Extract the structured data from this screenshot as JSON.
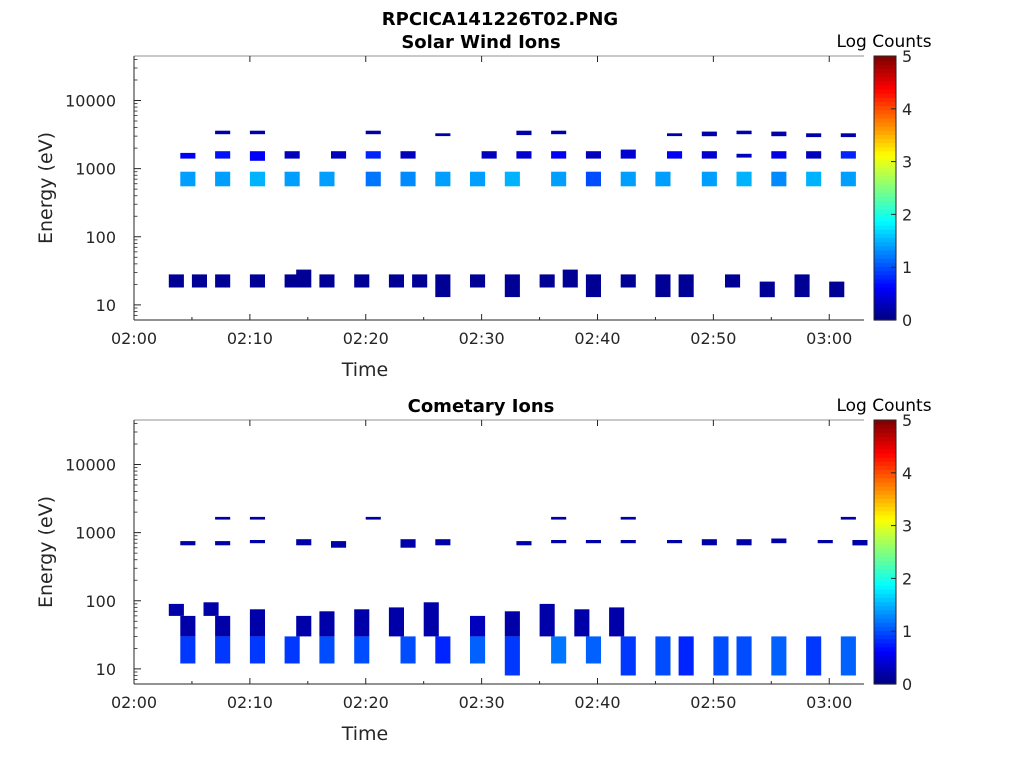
{
  "figure_title": "RPCICA141226T02.PNG",
  "chart_data": [
    {
      "type": "heatmap",
      "title": "Solar Wind Ions",
      "xlabel": "Time",
      "ylabel": "Energy (eV)",
      "x_ticks": [
        "02:00",
        "02:10",
        "02:20",
        "02:30",
        "02:40",
        "02:50",
        "03:00"
      ],
      "xlim": [
        "02:00",
        "03:03"
      ],
      "y_ticks": [
        "10",
        "100",
        "1000",
        "10000"
      ],
      "ylim": [
        6,
        45000
      ],
      "y_scale": "log",
      "colorbar": {
        "label": "Log Counts",
        "ticks": [
          "0",
          "1",
          "2",
          "3",
          "4",
          "5"
        ],
        "range": [
          0,
          5
        ],
        "colormap": "jet"
      },
      "cells": [
        [
          "02:03",
          18,
          28,
          0.1
        ],
        [
          "02:05",
          18,
          28,
          0.1
        ],
        [
          "02:07",
          18,
          28,
          0.1
        ],
        [
          "02:10",
          18,
          28,
          0.1
        ],
        [
          "02:13",
          18,
          28,
          0.1
        ],
        [
          "02:14",
          18,
          33,
          0.1
        ],
        [
          "02:16",
          18,
          28,
          0.1
        ],
        [
          "02:19",
          18,
          28,
          0.1
        ],
        [
          "02:22",
          18,
          28,
          0.1
        ],
        [
          "02:24",
          18,
          28,
          0.1
        ],
        [
          "02:26",
          13,
          28,
          0.1
        ],
        [
          "02:29",
          18,
          28,
          0.1
        ],
        [
          "02:32",
          13,
          28,
          0.1
        ],
        [
          "02:35",
          18,
          28,
          0.1
        ],
        [
          "02:37",
          18,
          33,
          0.1
        ],
        [
          "02:39",
          13,
          28,
          0.1
        ],
        [
          "02:42",
          18,
          28,
          0.1
        ],
        [
          "02:45",
          13,
          28,
          0.1
        ],
        [
          "02:47",
          13,
          28,
          0.1
        ],
        [
          "02:51",
          18,
          28,
          0.1
        ],
        [
          "02:54",
          13,
          22,
          0.1
        ],
        [
          "02:57",
          13,
          28,
          0.1
        ],
        [
          "03:00",
          13,
          22,
          0.1
        ],
        [
          "02:04",
          550,
          900,
          1.4
        ],
        [
          "02:07",
          550,
          900,
          1.4
        ],
        [
          "02:10",
          550,
          900,
          1.5
        ],
        [
          "02:13",
          550,
          900,
          1.4
        ],
        [
          "02:16",
          550,
          900,
          1.4
        ],
        [
          "02:20",
          550,
          900,
          1.2
        ],
        [
          "02:23",
          550,
          900,
          1.3
        ],
        [
          "02:26",
          550,
          900,
          1.4
        ],
        [
          "02:29",
          550,
          900,
          1.4
        ],
        [
          "02:32",
          550,
          900,
          1.5
        ],
        [
          "02:36",
          550,
          900,
          1.4
        ],
        [
          "02:39",
          550,
          900,
          1.0
        ],
        [
          "02:42",
          550,
          900,
          1.4
        ],
        [
          "02:45",
          550,
          900,
          1.4
        ],
        [
          "02:49",
          550,
          900,
          1.4
        ],
        [
          "02:52",
          550,
          900,
          1.5
        ],
        [
          "02:55",
          550,
          900,
          1.3
        ],
        [
          "02:58",
          550,
          900,
          1.5
        ],
        [
          "03:01",
          550,
          900,
          1.4
        ],
        [
          "02:04",
          1400,
          1700,
          0.6
        ],
        [
          "02:07",
          1400,
          1800,
          0.7
        ],
        [
          "02:10",
          1300,
          1800,
          0.6
        ],
        [
          "02:13",
          1400,
          1800,
          0.3
        ],
        [
          "02:17",
          1400,
          1800,
          0.3
        ],
        [
          "02:20",
          1400,
          1800,
          0.8
        ],
        [
          "02:23",
          1400,
          1800,
          0.3
        ],
        [
          "02:30",
          1400,
          1800,
          0.3
        ],
        [
          "02:33",
          1400,
          1800,
          0.4
        ],
        [
          "02:36",
          1400,
          1800,
          0.6
        ],
        [
          "02:39",
          1400,
          1800,
          0.3
        ],
        [
          "02:42",
          1400,
          1900,
          0.4
        ],
        [
          "02:46",
          1400,
          1800,
          0.6
        ],
        [
          "02:49",
          1400,
          1800,
          0.4
        ],
        [
          "02:52",
          1450,
          1650,
          0.3
        ],
        [
          "02:55",
          1400,
          1800,
          0.5
        ],
        [
          "02:58",
          1400,
          1800,
          0.3
        ],
        [
          "03:01",
          1400,
          1800,
          0.8
        ],
        [
          "02:07",
          3200,
          3600,
          0.2
        ],
        [
          "02:10",
          3200,
          3600,
          0.2
        ],
        [
          "02:20",
          3200,
          3600,
          0.2
        ],
        [
          "02:26",
          3000,
          3300,
          0.2
        ],
        [
          "02:33",
          3100,
          3600,
          0.2
        ],
        [
          "02:36",
          3200,
          3600,
          0.2
        ],
        [
          "02:46",
          3000,
          3300,
          0.2
        ],
        [
          "02:49",
          3000,
          3500,
          0.2
        ],
        [
          "02:52",
          3200,
          3600,
          0.2
        ],
        [
          "02:55",
          3000,
          3500,
          0.2
        ],
        [
          "02:58",
          2900,
          3300,
          0.2
        ],
        [
          "03:01",
          2900,
          3300,
          0.2
        ]
      ]
    },
    {
      "type": "heatmap",
      "title": "Cometary Ions",
      "xlabel": "Time",
      "ylabel": "Energy (eV)",
      "x_ticks": [
        "02:00",
        "02:10",
        "02:20",
        "02:30",
        "02:40",
        "02:50",
        "03:00"
      ],
      "xlim": [
        "02:00",
        "03:03"
      ],
      "y_ticks": [
        "10",
        "100",
        "1000",
        "10000"
      ],
      "ylim": [
        6,
        45000
      ],
      "y_scale": "log",
      "colorbar": {
        "label": "Log Counts",
        "ticks": [
          "0",
          "1",
          "2",
          "3",
          "4",
          "5"
        ],
        "range": [
          0,
          5
        ],
        "colormap": "jet"
      },
      "cells": [
        [
          "02:03",
          60,
          90,
          0.2
        ],
        [
          "02:04",
          12,
          30,
          0.9
        ],
        [
          "02:04",
          30,
          60,
          0.2
        ],
        [
          "02:06",
          60,
          95,
          0.2
        ],
        [
          "02:07",
          12,
          30,
          0.9
        ],
        [
          "02:07",
          30,
          60,
          0.2
        ],
        [
          "02:10",
          12,
          30,
          0.9
        ],
        [
          "02:10",
          30,
          75,
          0.2
        ],
        [
          "02:13",
          12,
          30,
          0.9
        ],
        [
          "02:14",
          30,
          60,
          0.2
        ],
        [
          "02:16",
          12,
          30,
          1.0
        ],
        [
          "02:16",
          30,
          70,
          0.2
        ],
        [
          "02:19",
          12,
          30,
          1.0
        ],
        [
          "02:19",
          30,
          75,
          0.2
        ],
        [
          "02:23",
          12,
          30,
          1.0
        ],
        [
          "02:22",
          30,
          80,
          0.2
        ],
        [
          "02:26",
          12,
          30,
          0.8
        ],
        [
          "02:25",
          30,
          95,
          0.2
        ],
        [
          "02:29",
          12,
          30,
          1.1
        ],
        [
          "02:29",
          30,
          60,
          0.3
        ],
        [
          "02:32",
          8,
          30,
          0.9
        ],
        [
          "02:32",
          30,
          70,
          0.2
        ],
        [
          "02:36",
          12,
          30,
          1.2
        ],
        [
          "02:35",
          30,
          90,
          0.2
        ],
        [
          "02:39",
          12,
          30,
          1.1
        ],
        [
          "02:38",
          30,
          75,
          0.2
        ],
        [
          "02:42",
          8,
          30,
          0.9
        ],
        [
          "02:41",
          30,
          80,
          0.2
        ],
        [
          "02:45",
          8,
          30,
          1.0
        ],
        [
          "02:47",
          8,
          30,
          0.8
        ],
        [
          "02:50",
          8,
          30,
          1.0
        ],
        [
          "02:52",
          8,
          30,
          1.0
        ],
        [
          "02:55",
          8,
          30,
          1.1
        ],
        [
          "02:58",
          8,
          30,
          0.9
        ],
        [
          "03:01",
          8,
          30,
          1.1
        ],
        [
          "02:04",
          650,
          750,
          0.2
        ],
        [
          "02:07",
          650,
          750,
          0.2
        ],
        [
          "02:10",
          700,
          780,
          0.2
        ],
        [
          "02:14",
          650,
          800,
          0.2
        ],
        [
          "02:17",
          600,
          750,
          0.2
        ],
        [
          "02:23",
          600,
          800,
          0.2
        ],
        [
          "02:26",
          650,
          800,
          0.2
        ],
        [
          "02:33",
          650,
          750,
          0.2
        ],
        [
          "02:36",
          700,
          780,
          0.2
        ],
        [
          "02:39",
          700,
          780,
          0.2
        ],
        [
          "02:42",
          700,
          780,
          0.2
        ],
        [
          "02:46",
          700,
          780,
          0.2
        ],
        [
          "02:49",
          650,
          800,
          0.2
        ],
        [
          "02:52",
          650,
          800,
          0.2
        ],
        [
          "02:55",
          700,
          820,
          0.2
        ],
        [
          "02:59",
          700,
          780,
          0.2
        ],
        [
          "03:02",
          650,
          780,
          0.2
        ],
        [
          "02:07",
          1550,
          1700,
          0.2
        ],
        [
          "02:10",
          1550,
          1700,
          0.2
        ],
        [
          "02:20",
          1550,
          1700,
          0.2
        ],
        [
          "02:36",
          1550,
          1700,
          0.2
        ],
        [
          "02:42",
          1550,
          1700,
          0.2
        ],
        [
          "03:01",
          1550,
          1700,
          0.2
        ]
      ]
    }
  ]
}
